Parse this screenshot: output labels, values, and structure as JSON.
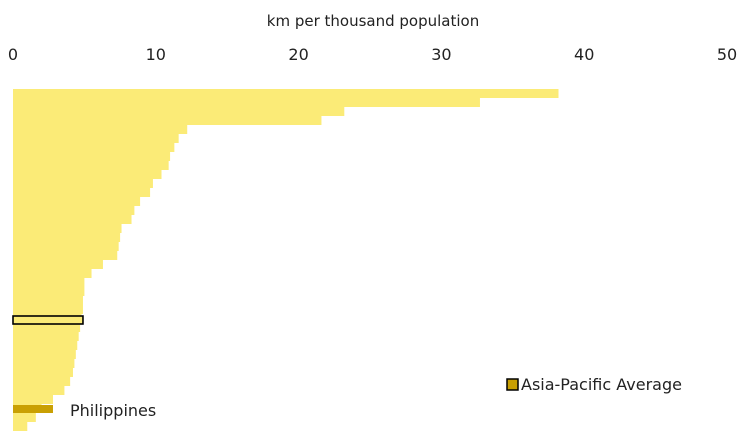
{
  "chart_data": {
    "type": "bar",
    "orientation": "horizontal",
    "xlabel": "km per thousand population",
    "x_axis_position": "top",
    "xlim": [
      0,
      50
    ],
    "xticks": [
      0,
      10,
      20,
      30,
      40,
      50
    ],
    "grid": false,
    "values": [
      38.2,
      32.7,
      23.2,
      21.6,
      12.2,
      11.6,
      11.3,
      11.0,
      10.9,
      10.4,
      9.8,
      9.6,
      8.9,
      8.5,
      8.3,
      7.6,
      7.5,
      7.4,
      7.3,
      6.3,
      5.5,
      5.0,
      5.0,
      4.9,
      4.9,
      4.8,
      4.7,
      4.6,
      4.5,
      4.4,
      4.3,
      4.2,
      4.0,
      3.6,
      2.8,
      2.0,
      1.6,
      1.0
    ],
    "highlight": [
      {
        "label": "Asia-Pacific Average",
        "value": 4.9
      },
      {
        "label": "Philippines",
        "value": 2.8
      }
    ],
    "legend": {
      "entries": [
        "Asia-Pacific Average"
      ],
      "position": "bottom-right"
    },
    "colors": {
      "bars": "#fbeb77",
      "highlight": "#c9a003",
      "outline": "#000000"
    }
  }
}
